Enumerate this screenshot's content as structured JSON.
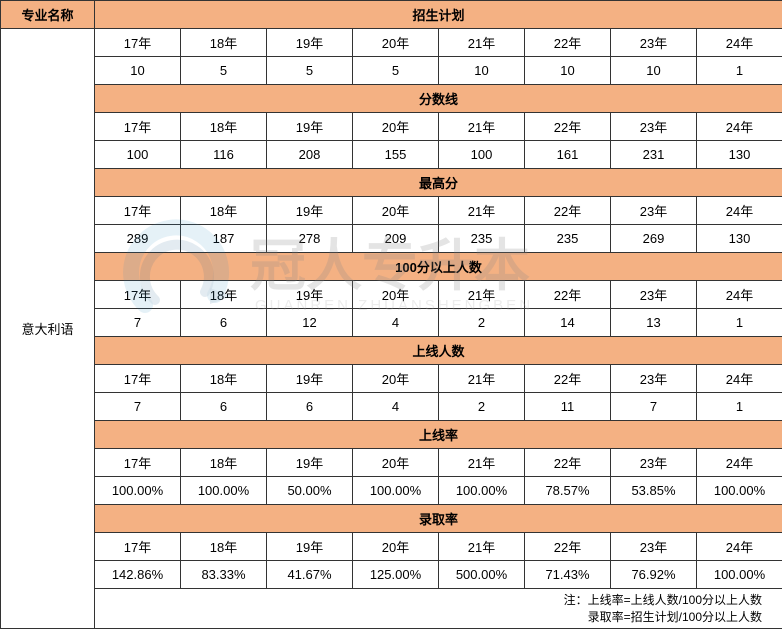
{
  "header": {
    "major_label": "专业名称",
    "major_value": "意大利语"
  },
  "years": [
    "17年",
    "18年",
    "19年",
    "20年",
    "21年",
    "22年",
    "23年",
    "24年"
  ],
  "sections": [
    {
      "title": "招生计划",
      "values": [
        "10",
        "5",
        "5",
        "5",
        "10",
        "10",
        "10",
        "1"
      ]
    },
    {
      "title": "分数线",
      "values": [
        "100",
        "116",
        "208",
        "155",
        "100",
        "161",
        "231",
        "130"
      ]
    },
    {
      "title": "最高分",
      "values": [
        "289",
        "187",
        "278",
        "209",
        "235",
        "235",
        "269",
        "130"
      ]
    },
    {
      "title": "100分以上人数",
      "values": [
        "7",
        "6",
        "12",
        "4",
        "2",
        "14",
        "13",
        "1"
      ]
    },
    {
      "title": "上线人数",
      "values": [
        "7",
        "6",
        "6",
        "4",
        "2",
        "11",
        "7",
        "1"
      ]
    },
    {
      "title": "上线率",
      "values": [
        "100.00%",
        "100.00%",
        "50.00%",
        "100.00%",
        "100.00%",
        "78.57%",
        "53.85%",
        "100.00%"
      ]
    },
    {
      "title": "录取率",
      "values": [
        "142.86%",
        "83.33%",
        "41.67%",
        "125.00%",
        "500.00%",
        "71.43%",
        "76.92%",
        "100.00%"
      ]
    }
  ],
  "footer": {
    "line1": "注：上线率=上线人数/100分以上人数",
    "line2": "录取率=招生计划/100分以上人数"
  },
  "watermark": {
    "big_text": "冠人专升本",
    "small_text": "GUANREN ZHUANSHENGBEN",
    "icon_color_outer": "#2d8bbf",
    "icon_color_inner": "#1f5f8b",
    "text_color": "#888888",
    "small_color": "#aaaaaa"
  },
  "style": {
    "header_bg": "#f4b183",
    "border_color": "#333333"
  }
}
